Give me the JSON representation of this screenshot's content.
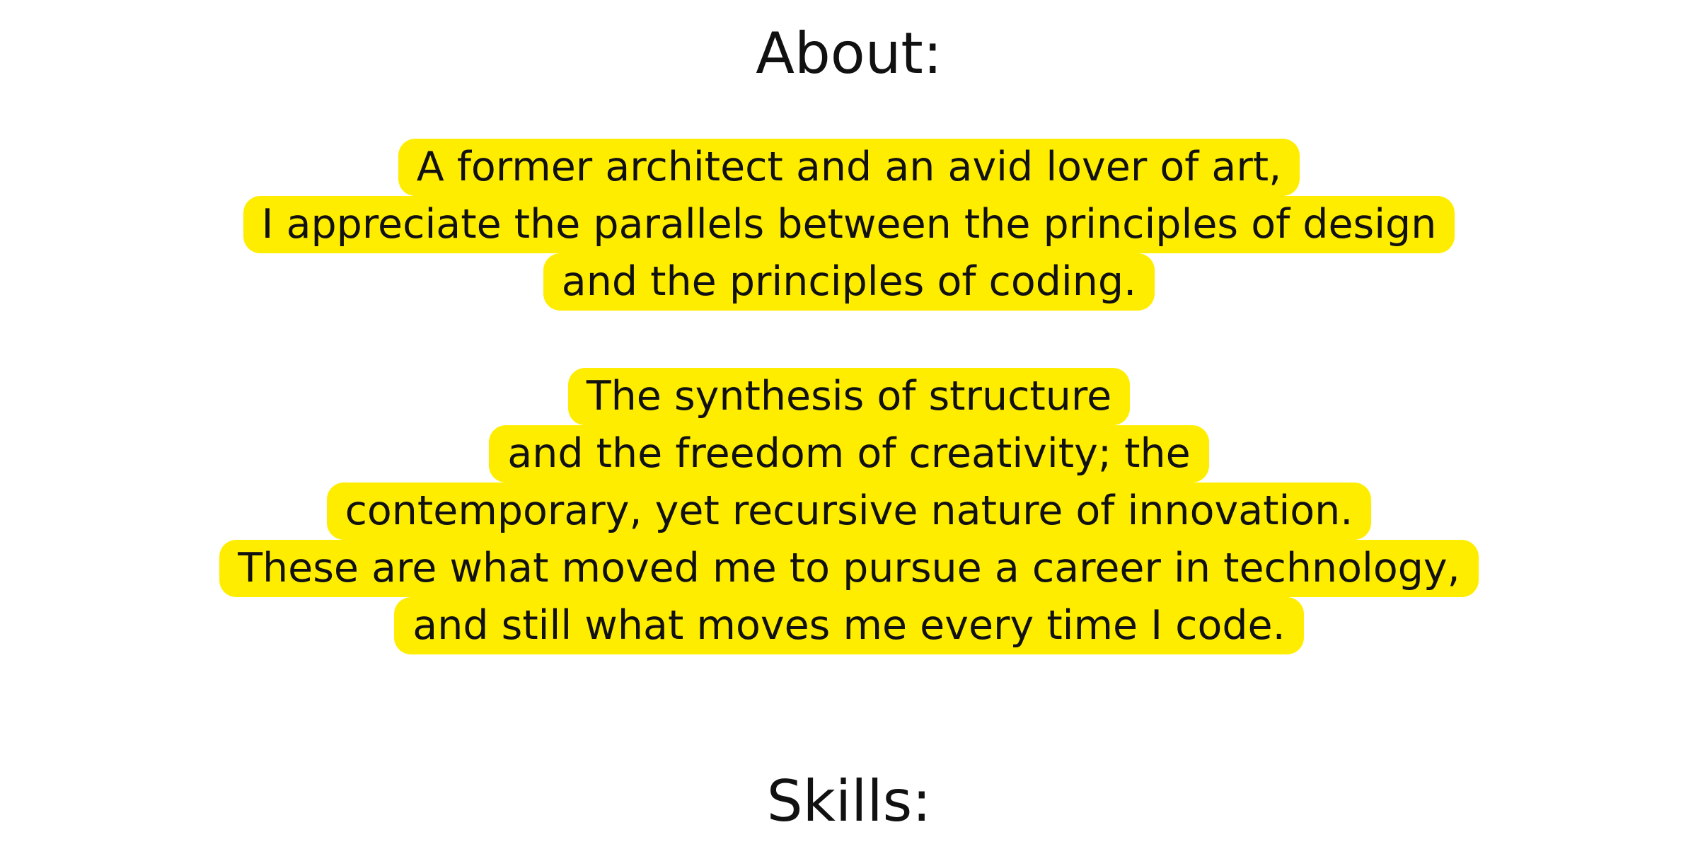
{
  "about": {
    "heading": "About:",
    "paragraph1": [
      "A former architect and an avid lover of art,",
      "I appreciate the parallels between the principles of design",
      "and the principles of coding."
    ],
    "paragraph2": [
      "The synthesis of structure",
      "and the freedom of creativity; the",
      "contemporary, yet recursive nature of innovation.",
      "These are what moved me to pursue a career in technology,",
      "and still what moves me every time I code."
    ]
  },
  "skills": {
    "heading": "Skills:"
  },
  "colors": {
    "highlight": "#ffed00",
    "text": "#111111",
    "background": "#ffffff"
  }
}
